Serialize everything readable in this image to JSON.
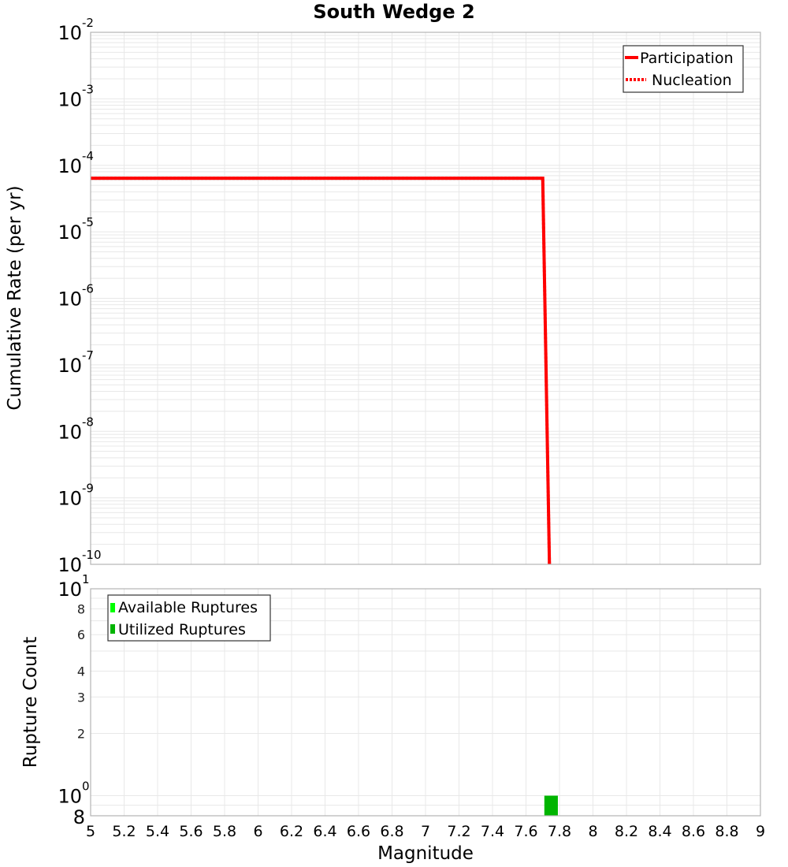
{
  "chart_data": [
    {
      "type": "line",
      "title": "South Wedge 2",
      "xlabel": "Magnitude",
      "ylabel": "Cumulative Rate (per yr)",
      "xscale": "linear",
      "yscale": "log",
      "xlim": [
        5,
        9
      ],
      "ylim": [
        1e-10,
        0.01
      ],
      "grid": true,
      "legend_position": "upper right",
      "y_tick_labels": [
        {
          "base": "10",
          "exp": "-2",
          "value": 0.01
        },
        {
          "base": "10",
          "exp": "-3",
          "value": 0.001
        },
        {
          "base": "10",
          "exp": "-4",
          "value": 0.0001
        },
        {
          "base": "10",
          "exp": "-5",
          "value": 1e-05
        },
        {
          "base": "10",
          "exp": "-6",
          "value": 1e-06
        },
        {
          "base": "10",
          "exp": "-7",
          "value": 1e-07
        },
        {
          "base": "10",
          "exp": "-8",
          "value": 1e-08
        },
        {
          "base": "10",
          "exp": "-9",
          "value": 1e-09
        },
        {
          "base": "10",
          "exp": "-10",
          "value": 1e-10
        }
      ],
      "series": [
        {
          "name": "Participation",
          "style": "solid",
          "color": "#ff0000",
          "x": [
            5.0,
            7.7,
            7.74
          ],
          "y": [
            6.4e-05,
            6.4e-05,
            1e-10
          ]
        },
        {
          "name": "Nucleation",
          "style": "dotted",
          "color": "#ff0000",
          "x": [
            5.0,
            7.7,
            7.74
          ],
          "y": [
            6.4e-05,
            6.4e-05,
            1e-10
          ]
        }
      ]
    },
    {
      "type": "bar",
      "title": "",
      "xlabel": "Magnitude",
      "ylabel": "Rupture Count",
      "xscale": "linear",
      "yscale": "log",
      "xlim": [
        5,
        9
      ],
      "ylim": [
        0.8,
        10
      ],
      "grid": true,
      "legend_position": "upper left",
      "y_tick_labels": [
        {
          "label": "10",
          "exp": "1",
          "value": 10,
          "major": true
        },
        {
          "label": "8",
          "value": 8,
          "major": false
        },
        {
          "label": "6",
          "value": 6,
          "major": false
        },
        {
          "label": "4",
          "value": 4,
          "major": false
        },
        {
          "label": "3",
          "value": 3,
          "major": false
        },
        {
          "label": "2",
          "value": 2,
          "major": false
        },
        {
          "label": "10",
          "exp": "0",
          "value": 1,
          "major": true
        },
        {
          "label": "8",
          "value": 0.8,
          "major": false,
          "bottom": true
        }
      ],
      "series": [
        {
          "name": "Available Ruptures",
          "color": "#00ff00",
          "x": [
            7.75
          ],
          "width": 0.08,
          "values": [
            1
          ]
        },
        {
          "name": "Utilized Ruptures",
          "color": "#00b400",
          "x": [
            7.75
          ],
          "width": 0.08,
          "values": [
            1
          ]
        }
      ]
    }
  ],
  "x_tick_labels": [
    "5",
    "5.2",
    "5.4",
    "5.6",
    "5.8",
    "6",
    "6.2",
    "6.4",
    "6.6",
    "6.8",
    "7",
    "7.2",
    "7.4",
    "7.6",
    "7.8",
    "8",
    "8.2",
    "8.4",
    "8.6",
    "8.8",
    "9"
  ],
  "labels": {
    "title": "South Wedge 2",
    "top_ylabel": "Cumulative Rate (per yr)",
    "bottom_ylabel": "Rupture Count",
    "xlabel": "Magnitude",
    "legend_top": [
      "Participation",
      "Nucleation"
    ],
    "legend_bottom": [
      "Available Ruptures",
      "Utilized Ruptures"
    ]
  },
  "colors": {
    "line": "#ff0000",
    "available": "#00ff00",
    "utilized": "#00b400",
    "grid": "#e8e8e8",
    "frame": "#b4b4b4"
  }
}
